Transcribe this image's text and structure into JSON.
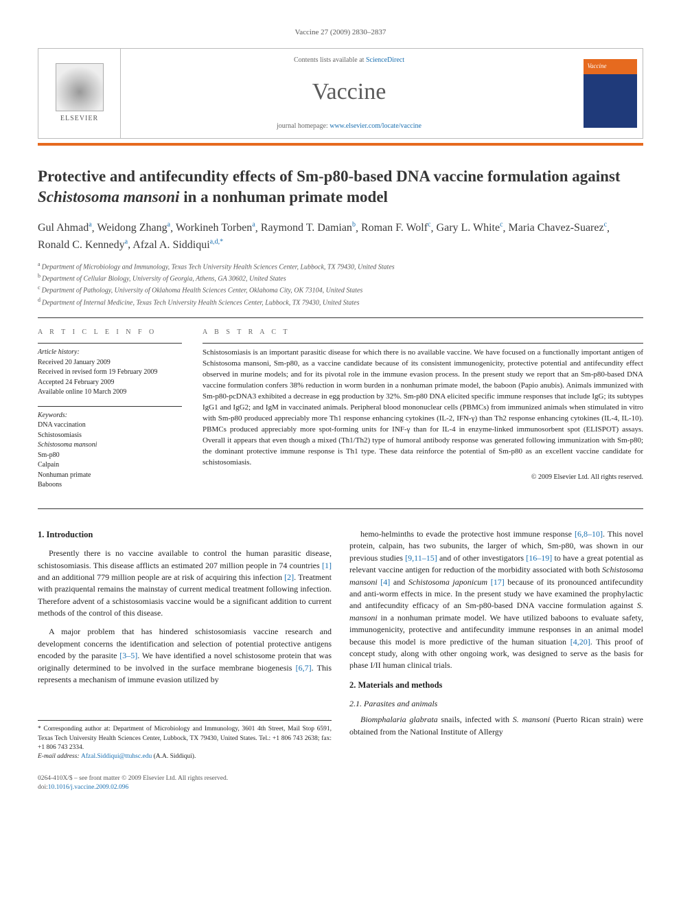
{
  "running_head": "Vaccine 27 (2009) 2830–2837",
  "header": {
    "elsevier_label": "ELSEVIER",
    "contents_prefix": "Contents lists available at ",
    "contents_link": "ScienceDirect",
    "journal": "Vaccine",
    "homepage_prefix": "journal homepage: ",
    "homepage_url": "www.elsevier.com/locate/vaccine",
    "cover_label": "Vaccine"
  },
  "title_pre": "Protective and antifecundity effects of Sm-p80-based DNA vaccine formulation against ",
  "title_em": "Schistosoma mansoni",
  "title_post": " in a nonhuman primate model",
  "authors_html": "Gul Ahmad",
  "authors": [
    {
      "name": "Gul Ahmad",
      "aff": "a"
    },
    {
      "name": "Weidong Zhang",
      "aff": "a"
    },
    {
      "name": "Workineh Torben",
      "aff": "a"
    },
    {
      "name": "Raymond T. Damian",
      "aff": "b"
    },
    {
      "name": "Roman F. Wolf",
      "aff": "c"
    },
    {
      "name": "Gary L. White",
      "aff": "c"
    },
    {
      "name": "Maria Chavez-Suarez",
      "aff": "c"
    },
    {
      "name": "Ronald C. Kennedy",
      "aff": "a"
    },
    {
      "name": "Afzal A. Siddiqui",
      "aff": "a,d,*"
    }
  ],
  "affiliations": [
    {
      "key": "a",
      "text": "Department of Microbiology and Immunology, Texas Tech University Health Sciences Center, Lubbock, TX 79430, United States"
    },
    {
      "key": "b",
      "text": "Department of Cellular Biology, University of Georgia, Athens, GA 30602, United States"
    },
    {
      "key": "c",
      "text": "Department of Pathology, University of Oklahoma Health Sciences Center, Oklahoma City, OK 73104, United States"
    },
    {
      "key": "d",
      "text": "Department of Internal Medicine, Texas Tech University Health Sciences Center, Lubbock, TX 79430, United States"
    }
  ],
  "article_info": {
    "heading": "A R T I C L E   I N F O",
    "history_label": "Article history:",
    "history": [
      "Received 20 January 2009",
      "Received in revised form 19 February 2009",
      "Accepted 24 February 2009",
      "Available online 10 March 2009"
    ],
    "keywords_label": "Keywords:",
    "keywords": [
      "DNA vaccination",
      "Schistosomiasis",
      "Schistosoma mansoni",
      "Sm-p80",
      "Calpain",
      "Nonhuman primate",
      "Baboons"
    ]
  },
  "abstract": {
    "heading": "A B S T R A C T",
    "text": "Schistosomiasis is an important parasitic disease for which there is no available vaccine. We have focused on a functionally important antigen of Schistosoma mansoni, Sm-p80, as a vaccine candidate because of its consistent immunogenicity, protective potential and antifecundity effect observed in murine models; and for its pivotal role in the immune evasion process. In the present study we report that an Sm-p80-based DNA vaccine formulation confers 38% reduction in worm burden in a nonhuman primate model, the baboon (Papio anubis). Animals immunized with Sm-p80-pcDNA3 exhibited a decrease in egg production by 32%. Sm-p80 DNA elicited specific immune responses that include IgG; its subtypes IgG1 and IgG2; and IgM in vaccinated animals. Peripheral blood mononuclear cells (PBMCs) from immunized animals when stimulated in vitro with Sm-p80 produced appreciably more Th1 response enhancing cytokines (IL-2, IFN-γ) than Th2 response enhancing cytokines (IL-4, IL-10). PBMCs produced appreciably more spot-forming units for INF-γ than for IL-4 in enzyme-linked immunosorbent spot (ELISPOT) assays. Overall it appears that even though a mixed (Th1/Th2) type of humoral antibody response was generated following immunization with Sm-p80; the dominant protective immune response is Th1 type. These data reinforce the potential of Sm-p80 as an excellent vaccine candidate for schistosomiasis.",
    "copyright": "© 2009 Elsevier Ltd. All rights reserved."
  },
  "sections": {
    "intro_heading": "1.  Introduction",
    "intro_p1": "Presently there is no vaccine available to control the human parasitic disease, schistosomiasis. This disease afflicts an estimated 207 million people in 74 countries [1] and an additional 779 million people are at risk of acquiring this infection [2]. Treatment with praziquental remains the mainstay of current medical treatment following infection. Therefore advent of a schistosomiasis vaccine would be a significant addition to current methods of the control of this disease.",
    "intro_p2": "A major problem that has hindered schistosomiasis vaccine research and development concerns the identification and selection of potential protective antigens encoded by the parasite [3–5]. We have identified a novel schistosome protein that was originally determined to be involved in the surface membrane biogenesis [6,7]. This represents a mechanism of immune evasion utilized by",
    "intro_p3": "hemo-helminths to evade the protective host immune response [6,8–10]. This novel protein, calpain, has two subunits, the larger of which, Sm-p80, was shown in our previous studies [9,11–15] and of other investigators [16–19] to have a great potential as relevant vaccine antigen for reduction of the morbidity associated with both Schistosoma mansoni [4] and Schistosoma japonicum [17] because of its pronounced antifecundity and anti-worm effects in mice. In the present study we have examined the prophylactic and antifecundity efficacy of an Sm-p80-based DNA vaccine formulation against S. mansoni in a nonhuman primate model. We have utilized baboons to evaluate safety, immunogenicity, protective and antifecundity immune responses in an animal model because this model is more predictive of the human situation [4,20]. This proof of concept study, along with other ongoing work, was designed to serve as the basis for phase I/II human clinical trials.",
    "mm_heading": "2.  Materials and methods",
    "mm_sub": "2.1.  Parasites and animals",
    "mm_p1": "Biomphalaria glabrata snails, infected with S. mansoni (Puerto Rican strain) were obtained from the National Institute of Allergy"
  },
  "corresponding": {
    "star": "*",
    "text": " Corresponding author at: Department of Microbiology and Immunology, 3601 4th Street, Mail Stop 6591, Texas Tech University Health Sciences Center, Lubbock, TX 79430, United States. Tel.: +1 806 743 2638; fax: +1 806 743 2334.",
    "email_label": "E-mail address: ",
    "email": "Afzal.Siddiqui@ttuhsc.edu",
    "email_suffix": " (A.A. Siddiqui)."
  },
  "footer": {
    "line1": "0264-410X/$ – see front matter © 2009 Elsevier Ltd. All rights reserved.",
    "doi_prefix": "doi:",
    "doi": "10.1016/j.vaccine.2009.02.096"
  },
  "links_in_text": [
    "[1]",
    "[2]",
    "[3–5]",
    "[6,7]",
    "[6,8–10]",
    "[9,11–15]",
    "[16–19]",
    "[4]",
    "[17]",
    "[4,20]"
  ]
}
